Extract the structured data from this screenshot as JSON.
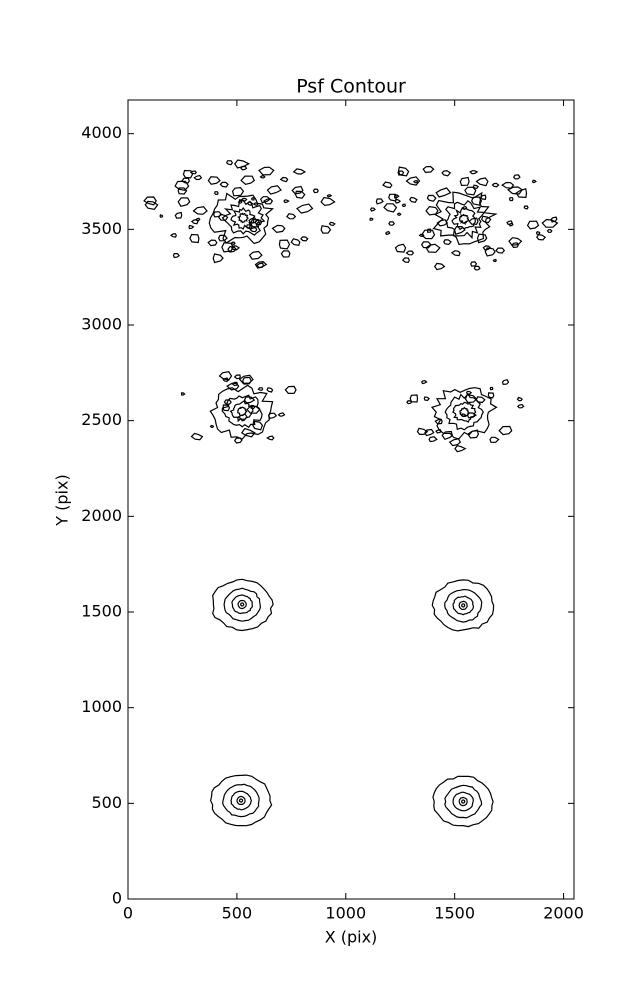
{
  "chart_data": {
    "type": "contour",
    "title": "Psf Contour",
    "x_label": "X (pix)",
    "y_label": "Y (pix)",
    "xlim": [
      0,
      2048
    ],
    "ylim": [
      0,
      4176
    ],
    "xticks": [
      0,
      500,
      1000,
      1500,
      2000
    ],
    "yticks": [
      0,
      500,
      1000,
      1500,
      2000,
      2500,
      3000,
      3500,
      4000
    ],
    "color": "#000000",
    "sources": [
      {
        "x": 510,
        "y": 525
      },
      {
        "x": 1530,
        "y": 520
      },
      {
        "x": 515,
        "y": 1550
      },
      {
        "x": 1530,
        "y": 1545
      },
      {
        "x": 515,
        "y": 2560
      },
      {
        "x": 1535,
        "y": 2555
      },
      {
        "x": 520,
        "y": 3570
      },
      {
        "x": 1535,
        "y": 3565
      }
    ]
  }
}
